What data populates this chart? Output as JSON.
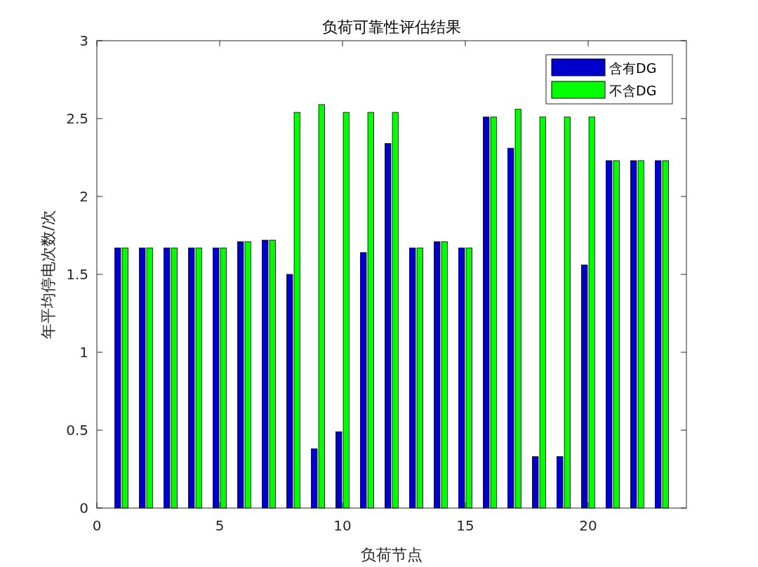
{
  "chart_data": {
    "type": "bar",
    "title": "负荷可靠性评估结果",
    "xlabel": "负荷节点",
    "ylabel": "年平均停电次数/次",
    "x": [
      1,
      2,
      3,
      4,
      5,
      6,
      7,
      8,
      9,
      10,
      11,
      12,
      13,
      14,
      15,
      16,
      17,
      18,
      19,
      20,
      21,
      22,
      23
    ],
    "series": [
      {
        "name": "含有DG",
        "color": "#0000cc",
        "values": [
          1.67,
          1.67,
          1.67,
          1.67,
          1.67,
          1.71,
          1.72,
          1.5,
          0.38,
          0.49,
          1.64,
          2.34,
          1.67,
          1.71,
          1.67,
          2.51,
          2.31,
          0.33,
          0.33,
          1.56,
          2.23,
          2.23,
          2.23
        ]
      },
      {
        "name": "不含DG",
        "color": "#00ff00",
        "values": [
          1.67,
          1.67,
          1.67,
          1.67,
          1.67,
          1.71,
          1.72,
          2.54,
          2.59,
          2.54,
          2.54,
          2.54,
          1.67,
          1.71,
          1.67,
          2.51,
          2.56,
          2.51,
          2.51,
          2.51,
          2.23,
          2.23,
          2.23
        ]
      }
    ],
    "xlim": [
      0,
      24
    ],
    "ylim": [
      0,
      3
    ],
    "xticks": [
      0,
      5,
      10,
      15,
      20
    ],
    "yticks": [
      0,
      0.5,
      1,
      1.5,
      2,
      2.5,
      3
    ],
    "legend": "top right"
  }
}
